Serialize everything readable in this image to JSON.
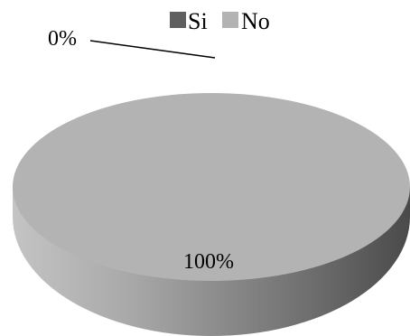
{
  "chart_data": {
    "type": "pie",
    "style": "3d",
    "categories": [
      "Si",
      "No"
    ],
    "values": [
      0,
      100
    ],
    "data_labels": [
      "0%",
      "100%"
    ],
    "colors": [
      "#5f5f5f",
      "#b3b3b3"
    ],
    "legend": {
      "position": "top",
      "entries": [
        "Si",
        "No"
      ]
    }
  }
}
